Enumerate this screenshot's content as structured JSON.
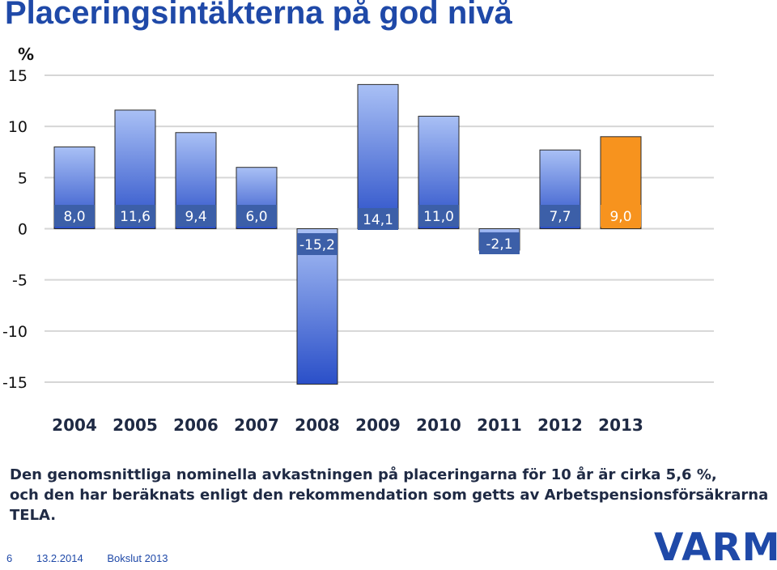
{
  "slide": {
    "title": "Placeringsintäkterna på god nivå",
    "note_line1": "Den genomsnittliga nominella avkastningen på placeringarna för 10 år är cirka 5,6 %,",
    "note_line2": "och den har beräknats enligt den rekommendation som getts av Arbetspensionsförsäkrarna TELA.",
    "page_number": "6",
    "date": "13.2.2014",
    "document": "Bokslut 2013",
    "logo": "VARMA"
  },
  "colors": {
    "title": "#1f49a8",
    "bar_top": "#a9c0f5",
    "bar_bottom": "#2a4fc8",
    "highlight": "#f7931e",
    "label_bg": "#3c5fa8",
    "grid": "#d6d6d6"
  },
  "chart_data": {
    "type": "bar",
    "ylabel": "%",
    "ylim": [
      -15,
      15
    ],
    "yticks": [
      15,
      10,
      5,
      0,
      -5,
      -10,
      -15
    ],
    "grid": true,
    "categories": [
      "2004",
      "2005",
      "2006",
      "2007",
      "2008",
      "2009",
      "2010",
      "2011",
      "2012",
      "2013"
    ],
    "values": [
      8.0,
      11.6,
      9.4,
      6.0,
      -15.2,
      14.1,
      11.0,
      -2.1,
      7.7,
      9.0
    ],
    "data_labels": [
      "8,0",
      "11,6",
      "9,4",
      "6,0",
      "-15,2",
      "14,1",
      "11,0",
      "-2,1",
      "7,7",
      "9,0"
    ],
    "highlighted_category": "2013"
  }
}
